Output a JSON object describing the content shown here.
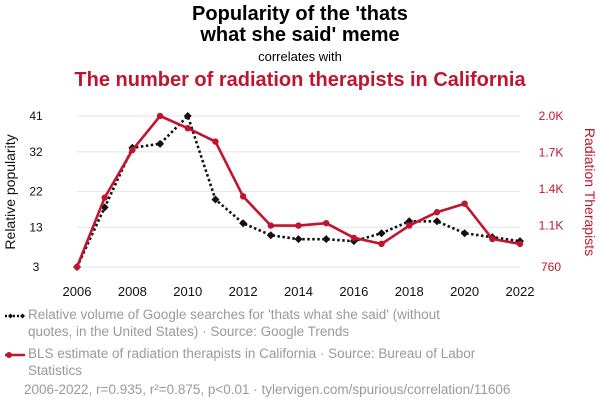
{
  "header": {
    "title_line1": "Popularity of the 'thats",
    "title_line2": "what she said' meme",
    "correlates_with": "correlates with",
    "subtitle": "The number of radiation therapists in California"
  },
  "chart_data": {
    "type": "line",
    "x": [
      2006,
      2007,
      2008,
      2009,
      2010,
      2011,
      2012,
      2013,
      2014,
      2015,
      2016,
      2017,
      2018,
      2019,
      2020,
      2021,
      2022
    ],
    "x_ticks": [
      "2006",
      "2008",
      "2010",
      "2012",
      "2014",
      "2016",
      "2018",
      "2020",
      "2022"
    ],
    "xlim": [
      2006,
      2022
    ],
    "y_left": {
      "label": "Relative popularity",
      "ticks": [
        "3",
        "13",
        "22",
        "32",
        "41"
      ],
      "tick_values": [
        3,
        13,
        22,
        32,
        41
      ],
      "ylim": [
        3,
        41
      ]
    },
    "y_right": {
      "label": "Radiation Therapists",
      "ticks": [
        "760",
        "1.1K",
        "1.4K",
        "1.7K",
        "2.0K"
      ],
      "tick_values": [
        760,
        1100,
        1400,
        1700,
        2000
      ],
      "ylim": [
        760,
        2000
      ]
    },
    "series": [
      {
        "name": "Relative volume of Google searches for 'thats what she said' (without quotes, in the United States) · Source: Google Trends",
        "axis": "left",
        "color": "#111111",
        "style": "dotted",
        "marker": "diamond",
        "values": [
          3,
          18,
          33,
          34,
          41,
          20,
          14,
          11,
          10,
          10,
          9.5,
          11.5,
          14.5,
          14.5,
          11.5,
          10.5,
          9.5
        ]
      },
      {
        "name": "BLS estimate of radiation therapists in California · Source: Bureau of Labor Statistics",
        "axis": "right",
        "color": "#c0152f",
        "style": "solid",
        "marker": "circle",
        "values": [
          760,
          1330,
          1720,
          2000,
          1900,
          1790,
          1340,
          1100,
          1100,
          1120,
          1000,
          950,
          1100,
          1210,
          1280,
          990,
          950
        ]
      }
    ],
    "grid": true,
    "legend_position": "bottom"
  },
  "legend": {
    "series1": "Relative volume of Google searches for 'thats what she said' (without quotes, in the United States) · Source: Google Trends",
    "series2": "BLS estimate of radiation therapists in California · Source: Bureau of Labor Statistics"
  },
  "footer": {
    "stats": "2006-2022, r=0.935, r²=0.875, p<0.01 · tylervigen.com/spurious/correlation/11606"
  }
}
